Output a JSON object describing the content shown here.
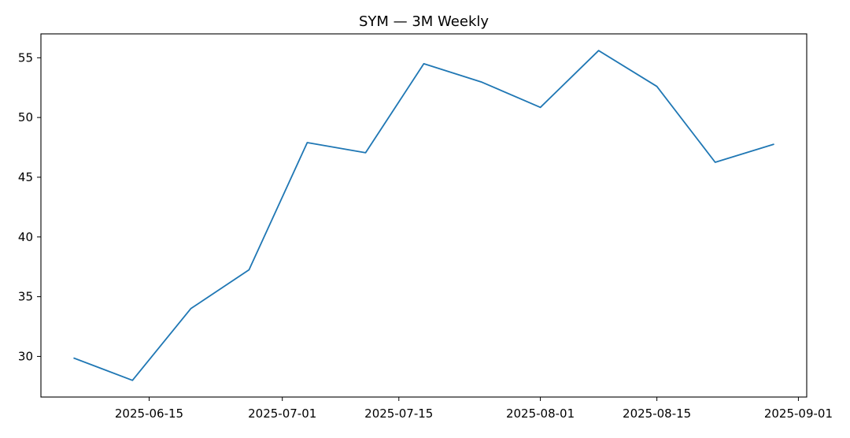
{
  "chart_data": {
    "type": "line",
    "title": "SYM — 3M Weekly",
    "xlabel": "",
    "ylabel": "",
    "x": [
      "2025-06-06",
      "2025-06-13",
      "2025-06-20",
      "2025-06-27",
      "2025-07-04",
      "2025-07-11",
      "2025-07-18",
      "2025-07-25",
      "2025-08-01",
      "2025-08-08",
      "2025-08-15",
      "2025-08-22",
      "2025-08-29"
    ],
    "series": [
      {
        "values": [
          29.85,
          28.0,
          34.0,
          37.25,
          47.9,
          47.05,
          54.5,
          52.95,
          50.85,
          55.6,
          52.6,
          46.25,
          47.75
        ]
      }
    ],
    "xlim": [
      "2025-06-02",
      "2025-09-02"
    ],
    "ylim": [
      26.6,
      57.0
    ],
    "xticks": [
      "2025-06-15",
      "2025-07-01",
      "2025-07-15",
      "2025-08-01",
      "2025-08-15",
      "2025-09-01"
    ],
    "yticks": [
      30,
      35,
      40,
      45,
      50,
      55
    ],
    "grid": false,
    "color": "#1f77b4"
  }
}
